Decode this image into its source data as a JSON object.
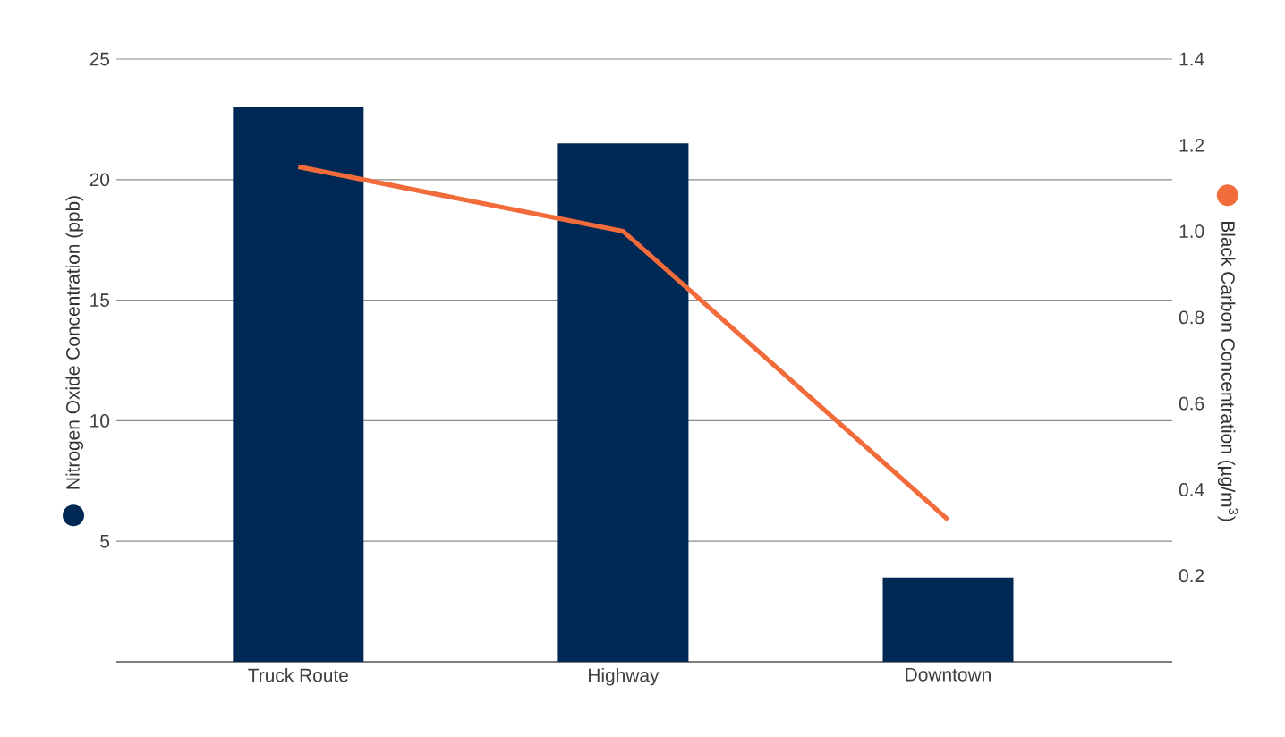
{
  "chart_data": {
    "type": "bar",
    "categories": [
      "Truck Route",
      "Highway",
      "Downtown"
    ],
    "ylabel": "Nitrogen Oxide Concentration (ppb)",
    "y2label": "Black Carbon Concentration  (µg/m$^{3}$)",
    "ylim": [
      0,
      25
    ],
    "yticks": [
      {
        "value": 0,
        "label": null
      },
      5,
      10,
      15,
      20,
      25
    ],
    "y2lim": [
      0,
      1.4
    ],
    "y2ticks": [
      0.2,
      0.4,
      0.6,
      0.8,
      {
        "value": 1.0,
        "label": "1.0"
      },
      1.2,
      1.4
    ],
    "grid": "y",
    "series": [
      {
        "color": "#002855",
        "values": [
          23,
          21.5,
          3.5
        ]
      },
      {
        "type": "line",
        "axis": "y2",
        "color": "#f26b3a",
        "values": [
          1.15,
          1.0,
          0.33
        ]
      }
    ]
  }
}
